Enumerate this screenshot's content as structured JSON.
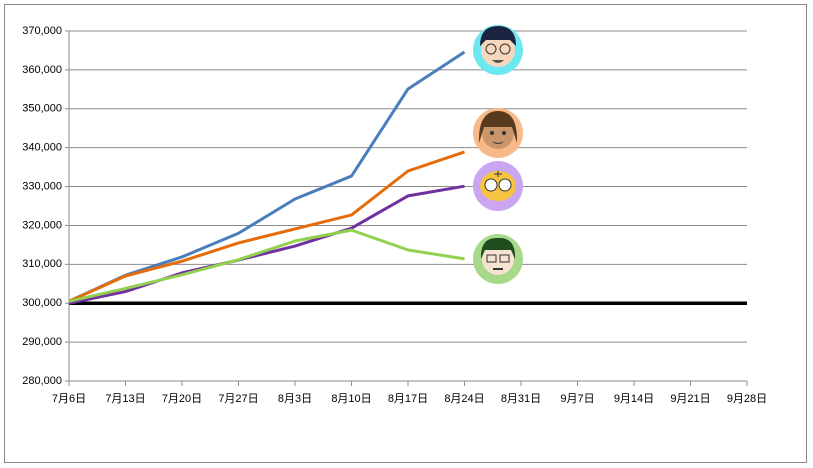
{
  "chart_data": {
    "type": "line",
    "categories": [
      "7月6日",
      "7月13日",
      "7月20日",
      "7月27日",
      "8月3日",
      "8月10日",
      "8月17日",
      "8月24日",
      "8月31日",
      "9月7日",
      "9月14日",
      "9月21日",
      "9月28日"
    ],
    "series": [
      {
        "color": "#4a7ebb",
        "values": [
          300500,
          307200,
          311900,
          318000,
          326800,
          332700,
          355100,
          364600,
          null,
          null,
          null,
          null,
          null
        ]
      },
      {
        "color": "#e46c0a",
        "values": [
          300500,
          307000,
          310800,
          315500,
          319100,
          322700,
          334000,
          338900,
          null,
          null,
          null,
          null,
          null
        ]
      },
      {
        "color": "#7030a0",
        "values": [
          300000,
          303000,
          307800,
          311100,
          314700,
          319300,
          327600,
          330100,
          null,
          null,
          null,
          null,
          null
        ]
      },
      {
        "color": "#92d050",
        "values": [
          300500,
          303800,
          307300,
          311200,
          316000,
          318800,
          313700,
          311400,
          null,
          null,
          null,
          null,
          null
        ]
      }
    ],
    "baseline": 300000,
    "ylim": [
      280000,
      370000
    ],
    "yticks": [
      {
        "value": 280000,
        "label": "280,000"
      },
      {
        "value": 290000,
        "label": "290,000"
      },
      {
        "value": 300000,
        "label": "300,000"
      },
      {
        "value": 310000,
        "label": "310,000"
      },
      {
        "value": 320000,
        "label": "320,000"
      },
      {
        "value": 330000,
        "label": "330,000"
      },
      {
        "value": 340000,
        "label": "340,000"
      },
      {
        "value": 350000,
        "label": "350,000"
      },
      {
        "value": 360000,
        "label": "360,000"
      },
      {
        "value": 370000,
        "label": "370,000"
      }
    ],
    "grid": true
  }
}
